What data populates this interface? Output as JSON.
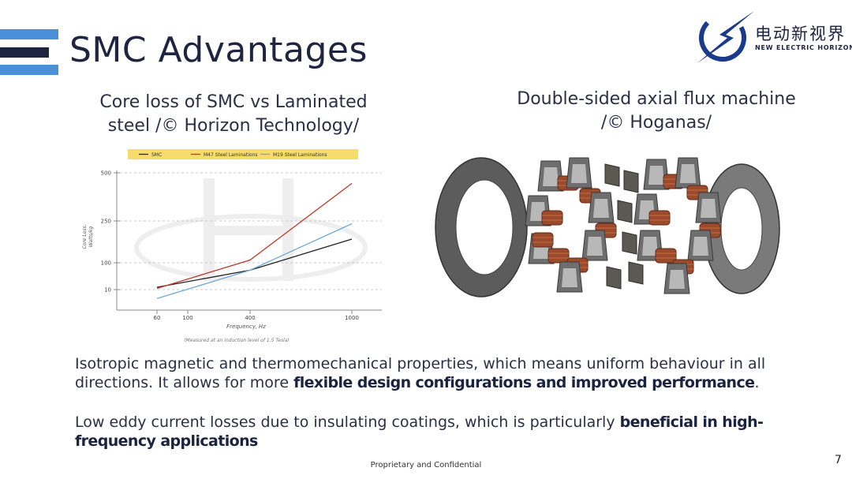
{
  "slide": {
    "title": "SMC Advantages",
    "page_number": "7",
    "footer": "Proprietary and Confidential"
  },
  "logo": {
    "name_cn": "电动新视界",
    "name_en": "NEW ELECTRIC HORIZON",
    "icon": "lightning-circle-logo",
    "color": "#1a3a8c"
  },
  "captions": {
    "left_line1": "Core loss of SMC vs Laminated",
    "left_line2": "steel /© Horizon Technology/",
    "right_line1": "Double-sided axial flux machine",
    "right_line2": "/© Hoganas/"
  },
  "chart_data": {
    "type": "line",
    "x": [
      60,
      100,
      400,
      1000
    ],
    "xticks": [
      "60",
      "100",
      "400",
      "1000"
    ],
    "yticks": [
      "10",
      "100",
      "250",
      "500"
    ],
    "xlabel": "Frequency, Hz",
    "ylabel_line1": "Core Loss,",
    "ylabel_line2": "Watts/kg",
    "note": "(Measured at an induction level of 1.5 Tesla)",
    "legend_position": "top",
    "grid": "horizontal dashed",
    "series": [
      {
        "name": "SMC",
        "color": "#222222",
        "points": [
          [
            60,
            18
          ],
          [
            400,
            75
          ],
          [
            1000,
            185
          ]
        ]
      },
      {
        "name": "M47 Steel Laminations",
        "color": "#c0392b",
        "points": [
          [
            60,
            14
          ],
          [
            400,
            110
          ],
          [
            1000,
            445
          ]
        ]
      },
      {
        "name": "M19 Steel Laminations",
        "color": "#6fa8d6",
        "points": [
          [
            60,
            -20
          ],
          [
            400,
            75
          ],
          [
            1000,
            240
          ]
        ]
      }
    ]
  },
  "bullets": {
    "p1_text": "Isotropic magnetic and thermomechanical properties, which means uniform behaviour in all directions. It allows for more ",
    "p1_bold": "flexible design configurations and improved performance",
    "p1_end": ".",
    "p2_text": "Low eddy current losses due to insulating coatings, which is particularly ",
    "p2_bold": "beneficial in high-frequency applications"
  }
}
